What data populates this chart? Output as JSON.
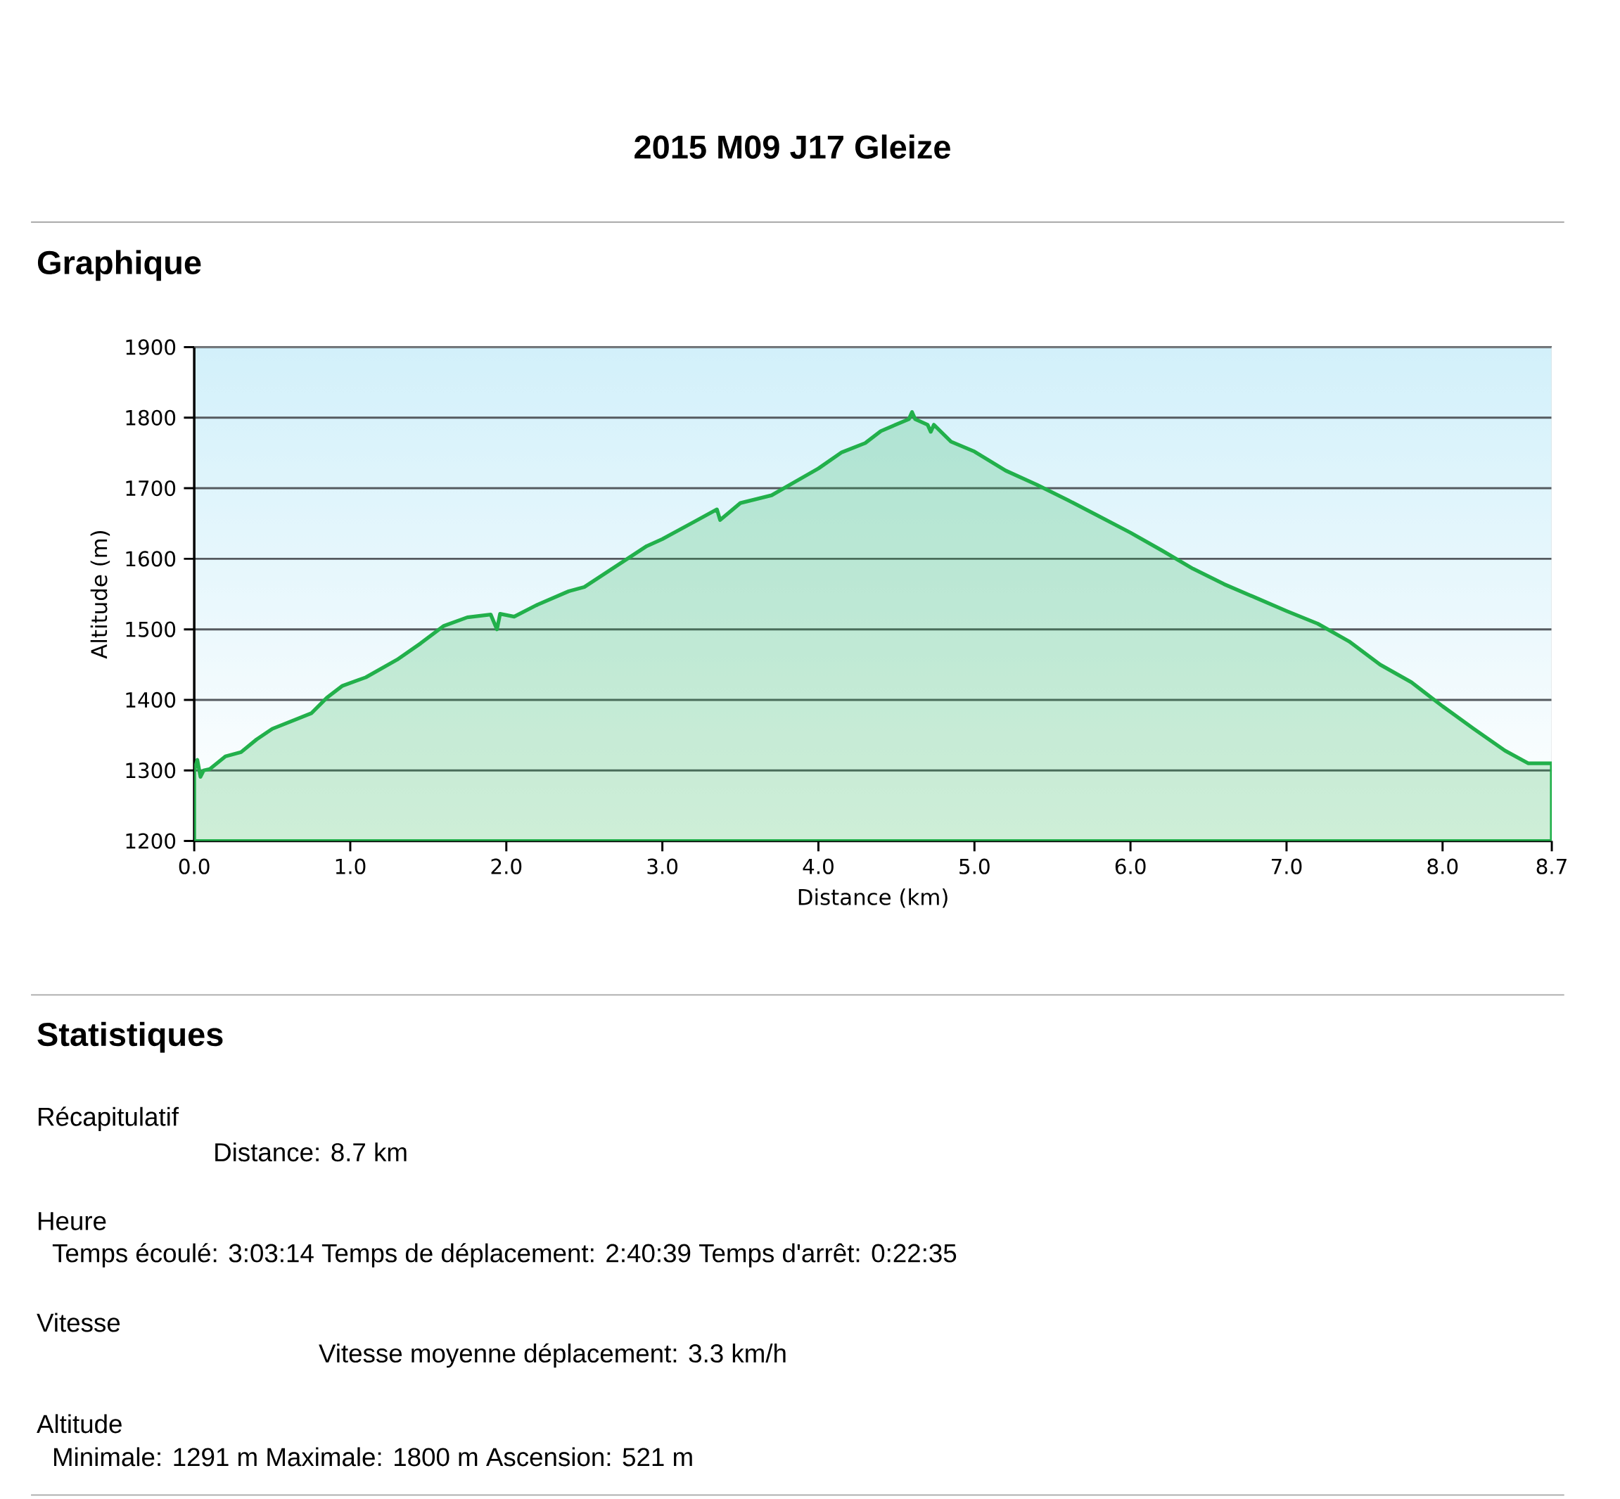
{
  "chart_data": {
    "type": "area",
    "title": "2015 M09 J17 Gleize",
    "xlabel": "Distance (km)",
    "ylabel": "Altitude (m)",
    "annotations": [
      "Graphique",
      "Statistiques",
      "Récapitulatif",
      "Distance: 8.7 km",
      "Heure",
      "Temps écoulé: 3:03:14  Temps de déplacement: 2:40:39  Temps d'arrêt: 0:22:35",
      "Vitesse",
      "Vitesse moyenne déplacement: 3.3 km/h",
      "Altitude",
      "Minimale: 1291 m  Maximale: 1800 m  Ascension: 521 m"
    ],
    "x": [
      0,
      0.02,
      0.04,
      0.06,
      0.1,
      0.2,
      0.3,
      0.4,
      0.5,
      0.75,
      0.85,
      0.95,
      1.1,
      1.3,
      1.45,
      1.6,
      1.75,
      1.9,
      1.94,
      1.96,
      2.05,
      2.2,
      2.4,
      2.5,
      2.7,
      2.9,
      3.0,
      3.2,
      3.35,
      3.37,
      3.5,
      3.7,
      3.85,
      4.0,
      4.15,
      4.3,
      4.4,
      4.58,
      4.6,
      4.62,
      4.7,
      4.72,
      4.74,
      4.85,
      5.0,
      5.2,
      5.4,
      5.6,
      5.8,
      6.0,
      6.2,
      6.4,
      6.6,
      6.8,
      7.0,
      7.2,
      7.4,
      7.6,
      7.8,
      8.0,
      8.2,
      8.4,
      8.55,
      8.7
    ],
    "series": [
      {
        "color": "#22b04b",
        "values": [
          1300,
          1315,
          1291,
          1300,
          1302,
          1320,
          1326,
          1344,
          1359,
          1381,
          1403,
          1420,
          1432,
          1457,
          1480,
          1505,
          1517,
          1521,
          1500,
          1522,
          1518,
          1535,
          1554,
          1560,
          1589,
          1618,
          1628,
          1652,
          1670,
          1655,
          1679,
          1690,
          1709,
          1728,
          1751,
          1764,
          1781,
          1798,
          1808,
          1798,
          1790,
          1780,
          1790,
          1766,
          1752,
          1725,
          1705,
          1683,
          1660,
          1637,
          1612,
          1586,
          1564,
          1545,
          1526,
          1508,
          1483,
          1450,
          1425,
          1391,
          1359,
          1328,
          1310,
          1310
        ]
      }
    ],
    "xlim": [
      0,
      8.7
    ],
    "ylim": [
      1200,
      1900
    ],
    "xticks": [
      {
        "value": 0,
        "label": "0.0"
      },
      {
        "value": 1,
        "label": "1.0"
      },
      {
        "value": 2,
        "label": "2.0"
      },
      {
        "value": 3,
        "label": "3.0"
      },
      {
        "value": 4,
        "label": "4.0"
      },
      {
        "value": 5,
        "label": "5.0"
      },
      {
        "value": 6,
        "label": "6.0"
      },
      {
        "value": 7,
        "label": "7.0"
      },
      {
        "value": 8,
        "label": "8.0"
      },
      {
        "value": 8.7,
        "label": "8.7"
      }
    ],
    "yticks": [
      1200,
      1300,
      1400,
      1500,
      1600,
      1700,
      1800,
      1900
    ],
    "grid": "y"
  }
}
